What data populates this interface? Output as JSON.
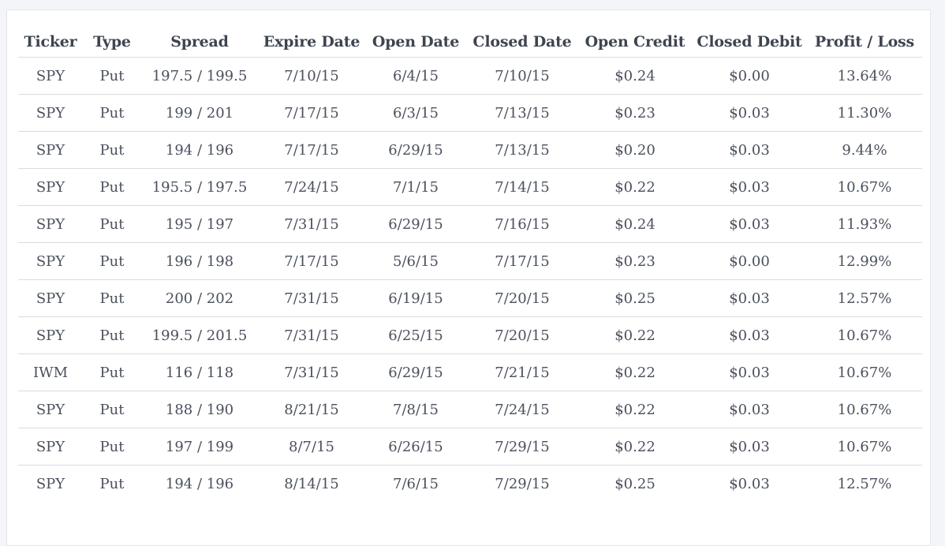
{
  "table": {
    "columns": [
      "Ticker",
      "Type",
      "Spread",
      "Expire Date",
      "Open Date",
      "Closed Date",
      "Open Credit",
      "Closed Debit",
      "Profit / Loss"
    ],
    "rows": [
      [
        "SPY",
        "Put",
        "197.5 / 199.5",
        "7/10/15",
        "6/4/15",
        "7/10/15",
        "$0.24",
        "$0.00",
        "13.64%"
      ],
      [
        "SPY",
        "Put",
        "199 / 201",
        "7/17/15",
        "6/3/15",
        "7/13/15",
        "$0.23",
        "$0.03",
        "11.30%"
      ],
      [
        "SPY",
        "Put",
        "194 / 196",
        "7/17/15",
        "6/29/15",
        "7/13/15",
        "$0.20",
        "$0.03",
        "9.44%"
      ],
      [
        "SPY",
        "Put",
        "195.5 / 197.5",
        "7/24/15",
        "7/1/15",
        "7/14/15",
        "$0.22",
        "$0.03",
        "10.67%"
      ],
      [
        "SPY",
        "Put",
        "195 / 197",
        "7/31/15",
        "6/29/15",
        "7/16/15",
        "$0.24",
        "$0.03",
        "11.93%"
      ],
      [
        "SPY",
        "Put",
        "196 / 198",
        "7/17/15",
        "5/6/15",
        "7/17/15",
        "$0.23",
        "$0.00",
        "12.99%"
      ],
      [
        "SPY",
        "Put",
        "200 / 202",
        "7/31/15",
        "6/19/15",
        "7/20/15",
        "$0.25",
        "$0.03",
        "12.57%"
      ],
      [
        "SPY",
        "Put",
        "199.5 / 201.5",
        "7/31/15",
        "6/25/15",
        "7/20/15",
        "$0.22",
        "$0.03",
        "10.67%"
      ],
      [
        "IWM",
        "Put",
        "116 / 118",
        "7/31/15",
        "6/29/15",
        "7/21/15",
        "$0.22",
        "$0.03",
        "10.67%"
      ],
      [
        "SPY",
        "Put",
        "188 / 190",
        "8/21/15",
        "7/8/15",
        "7/24/15",
        "$0.22",
        "$0.03",
        "10.67%"
      ],
      [
        "SPY",
        "Put",
        "197 / 199",
        "8/7/15",
        "6/26/15",
        "7/29/15",
        "$0.22",
        "$0.03",
        "10.67%"
      ],
      [
        "SPY",
        "Put",
        "194 / 196",
        "8/14/15",
        "7/6/15",
        "7/29/15",
        "$0.25",
        "$0.03",
        "12.57%"
      ]
    ]
  }
}
